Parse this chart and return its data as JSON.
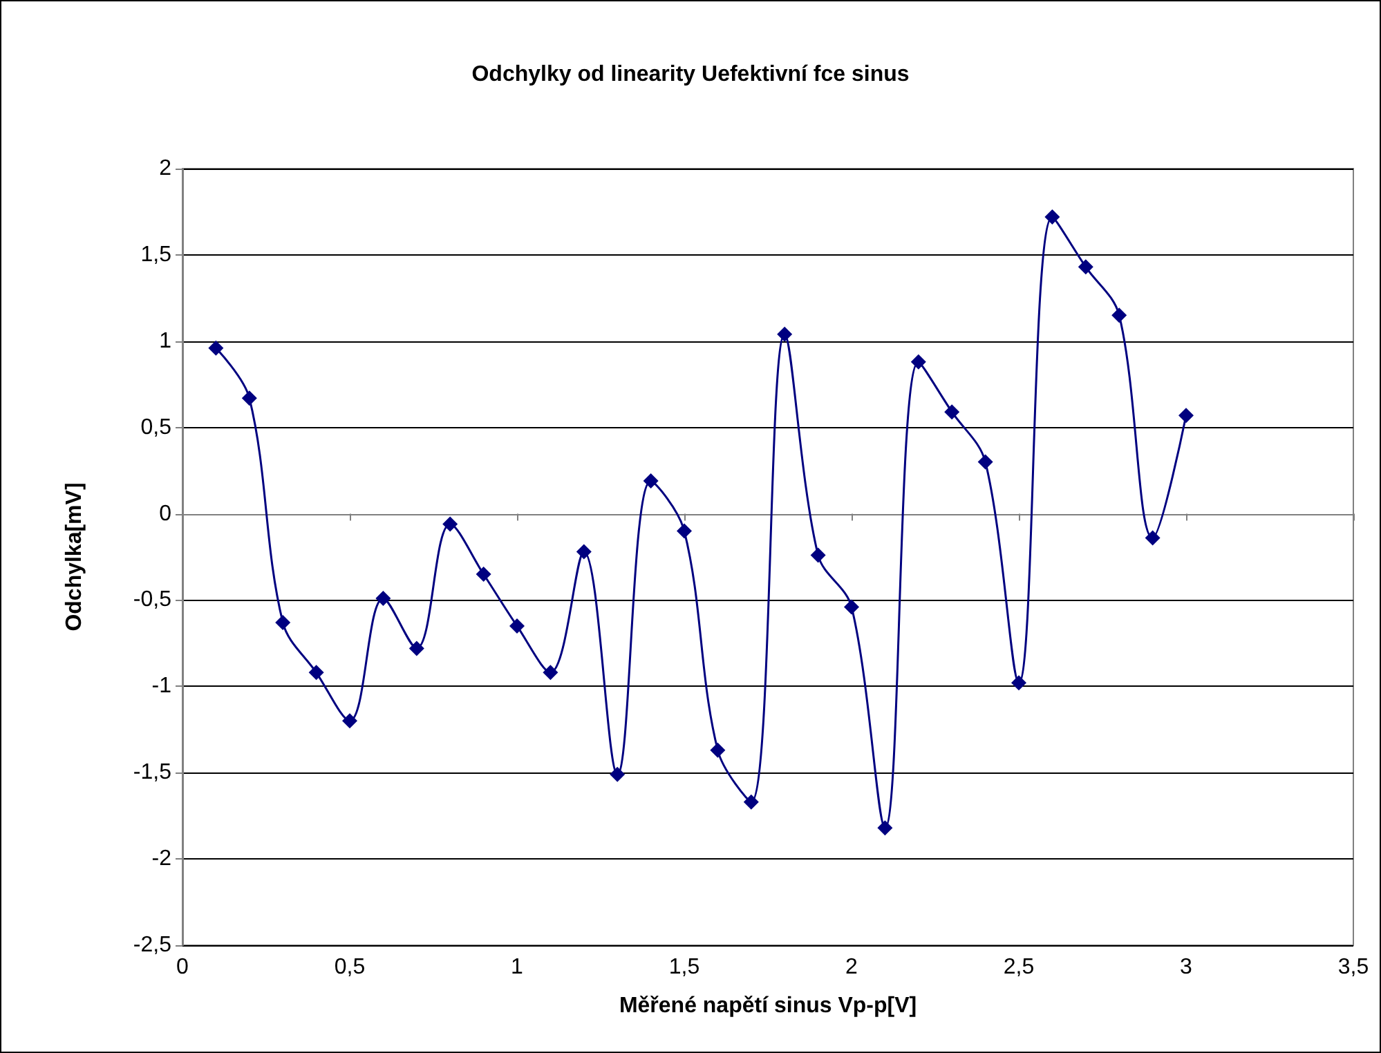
{
  "chart_data": {
    "type": "line",
    "title": "Odchylky od linearity Uefektivní fce sinus",
    "xlabel": "Měřené napětí sinus Vp-p[V]",
    "ylabel": "Odchylka[mV]",
    "x": [
      0.1,
      0.2,
      0.3,
      0.4,
      0.5,
      0.6,
      0.7,
      0.8,
      0.9,
      1.0,
      1.1,
      1.2,
      1.3,
      1.4,
      1.5,
      1.6,
      1.7,
      1.8,
      1.9,
      2.0,
      2.1,
      2.2,
      2.3,
      2.4,
      2.5,
      2.6,
      2.7,
      2.8,
      2.9,
      3.0
    ],
    "series": [
      {
        "color": "#000080",
        "values": [
          0.96,
          0.67,
          -0.63,
          -0.92,
          -1.2,
          -0.49,
          -0.78,
          -0.06,
          -0.35,
          -0.65,
          -0.92,
          -0.22,
          -1.51,
          0.19,
          -0.1,
          -1.37,
          -1.67,
          1.04,
          -0.24,
          -0.54,
          -1.82,
          0.88,
          0.59,
          0.3,
          -0.98,
          1.72,
          1.43,
          1.15,
          -0.14,
          0.57
        ]
      }
    ],
    "xlim": [
      0,
      3.5
    ],
    "xticks": [
      0,
      {
        "value": 0.5,
        "label": "0,5"
      },
      1,
      {
        "value": 1.5,
        "label": "1,5"
      },
      2,
      {
        "value": 2.5,
        "label": "2,5"
      },
      3,
      {
        "value": 3.5,
        "label": "3,5"
      }
    ],
    "ylim": [
      -2.5,
      2
    ],
    "yticks": [
      {
        "value": -2.5,
        "label": "-2,5"
      },
      -2,
      {
        "value": -1.5,
        "label": "-1,5"
      },
      -1,
      {
        "value": -0.5,
        "label": "-0,5"
      },
      0,
      {
        "value": 0.5,
        "label": "0,5"
      },
      1,
      {
        "value": 1.5,
        "label": "1,5"
      },
      2
    ],
    "grid": "y",
    "marker": "diamond",
    "line_style": "solid"
  }
}
